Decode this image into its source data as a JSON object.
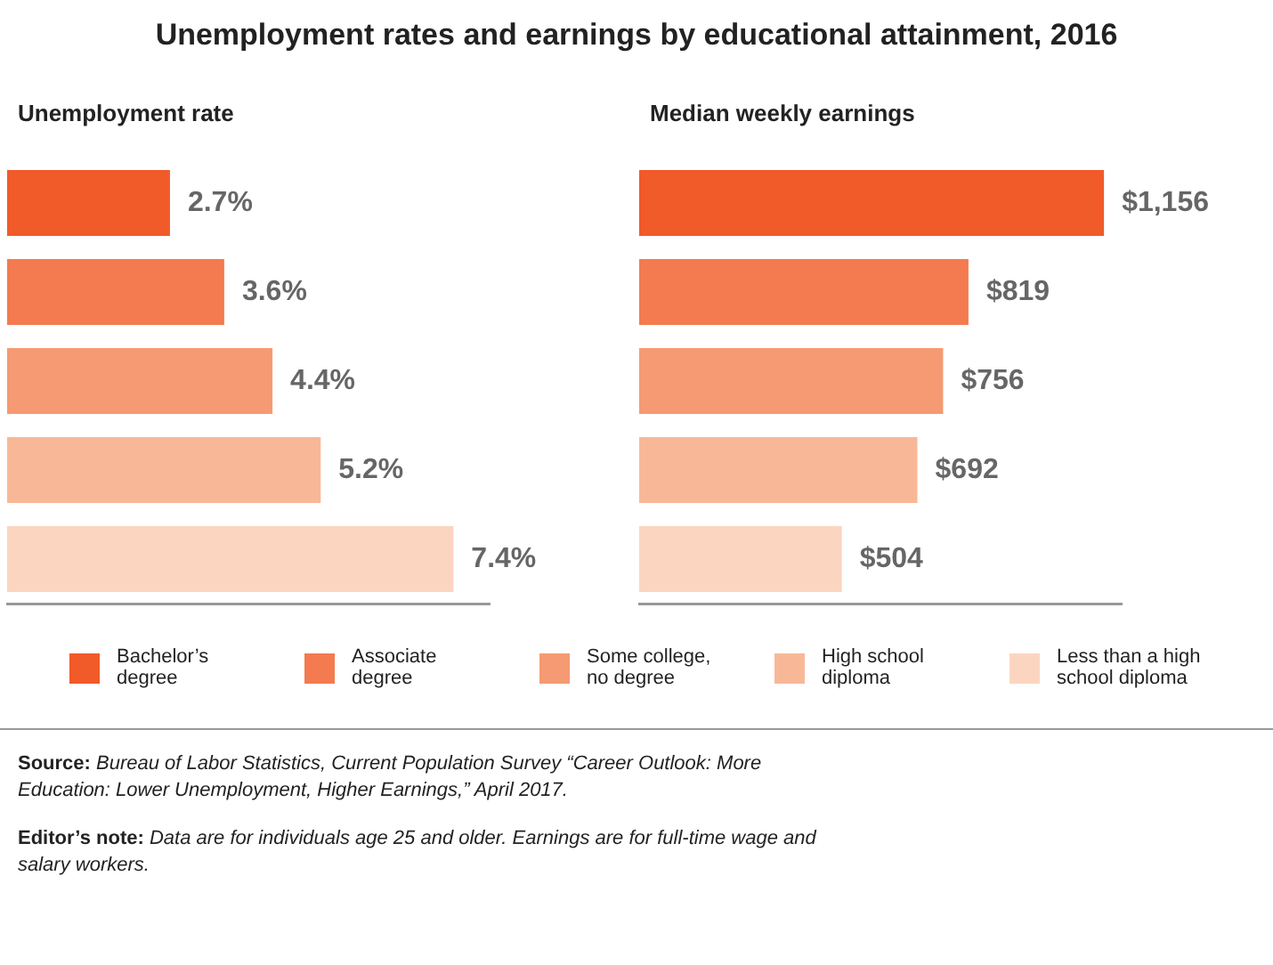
{
  "chart_data": [
    {
      "type": "bar",
      "orientation": "horizontal",
      "title": "Unemployment rates and earnings by educational attainment, 2016",
      "subtitle": "Unemployment rate",
      "stacked": true,
      "categories": [
        null,
        null,
        null,
        null,
        null
      ],
      "series": [
        {
          "name": "Bachelor’s degree",
          "color": "#f15a29",
          "values": [
            2.7,
            null,
            null,
            null,
            null
          ],
          "value_labels": [
            "2.7%",
            null,
            null,
            null,
            null
          ]
        },
        {
          "name": "Associate degree",
          "color": "#f37b4f",
          "values": [
            null,
            3.6,
            null,
            null,
            null
          ],
          "value_labels": [
            null,
            "3.6%",
            null,
            null,
            null
          ]
        },
        {
          "name": "Some college, no degree",
          "color": "#f59a72",
          "values": [
            null,
            null,
            4.4,
            null,
            null
          ],
          "value_labels": [
            null,
            null,
            "4.4%",
            null,
            null
          ]
        },
        {
          "name": "High school diploma",
          "color": "#f8b898",
          "values": [
            null,
            null,
            null,
            5.2,
            null
          ],
          "value_labels": [
            null,
            null,
            null,
            "5.2%",
            null
          ]
        },
        {
          "name": "Less than a high school diploma",
          "color": "#fcd5c0",
          "values": [
            null,
            null,
            null,
            null,
            7.4
          ],
          "value_labels": [
            null,
            null,
            null,
            null,
            "7.4%"
          ]
        }
      ],
      "legend": "bottom",
      "annotations": [
        "Source: Bureau of Labor Statistics, Current Population Survey “Career Outlook: More Education: Lower Unemployment, Higher Earnings,” April 2017.",
        "Editor’s note: Data are for individuals age 25 and older. Earnings are for full-time wage and salary workers."
      ]
    },
    {
      "type": "bar",
      "orientation": "horizontal",
      "subtitle": "Median weekly earnings",
      "stacked": true,
      "categories": [
        null,
        null,
        null,
        null,
        null
      ],
      "series": [
        {
          "color": "#f15a29",
          "values": [
            1156,
            null,
            null,
            null,
            null
          ],
          "value_labels": [
            "$1,156",
            null,
            null,
            null,
            null
          ]
        },
        {
          "color": "#f37b4f",
          "values": [
            null,
            819,
            null,
            null,
            null
          ],
          "value_labels": [
            null,
            "$819",
            null,
            null,
            null
          ]
        },
        {
          "color": "#f59a72",
          "values": [
            null,
            null,
            756,
            null,
            null
          ],
          "value_labels": [
            null,
            null,
            "$756",
            null,
            null
          ]
        },
        {
          "color": "#f8b898",
          "values": [
            null,
            null,
            null,
            692,
            null
          ],
          "value_labels": [
            null,
            null,
            null,
            "$692",
            null
          ]
        },
        {
          "color": "#fcd5c0",
          "values": [
            null,
            null,
            null,
            null,
            504
          ],
          "value_labels": [
            null,
            null,
            null,
            null,
            "$504"
          ]
        }
      ]
    }
  ]
}
